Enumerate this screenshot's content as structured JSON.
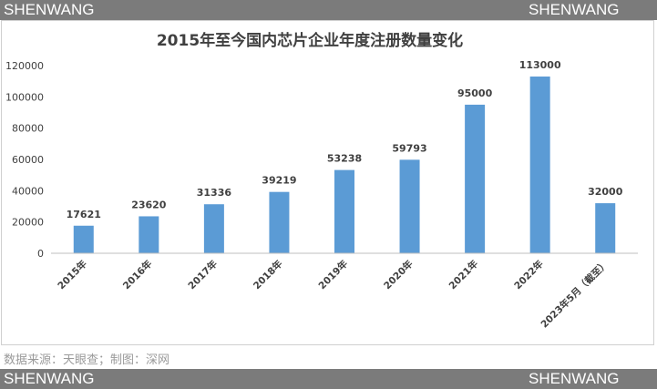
{
  "watermark": {
    "left": "SHENWANG",
    "right": "SHENWANG"
  },
  "source_note": "数据来源：天眼查；制图：深网",
  "chart_data": {
    "type": "bar",
    "title": "2015年至今国内芯片企业年度注册数量变化",
    "xlabel": "",
    "ylabel": "",
    "categories": [
      "2015年",
      "2016年",
      "2017年",
      "2018年",
      "2019年",
      "2020年",
      "2021年",
      "2022年",
      "2023年5月（截至）"
    ],
    "values": [
      17621,
      23620,
      31336,
      39219,
      53238,
      59793,
      95000,
      113000,
      32000
    ],
    "data_labels": [
      "17621",
      "23620",
      "31336",
      "39219",
      "53238",
      "59793",
      "95000",
      "113000",
      "32000"
    ],
    "y_ticks": [
      0,
      20000,
      40000,
      60000,
      80000,
      100000,
      120000
    ],
    "ylim": [
      0,
      120000
    ],
    "grid": false,
    "legend": "none",
    "colors": {
      "bar": "#5b9bd5",
      "axis": "#bfbfbf",
      "text": "#404040"
    }
  }
}
